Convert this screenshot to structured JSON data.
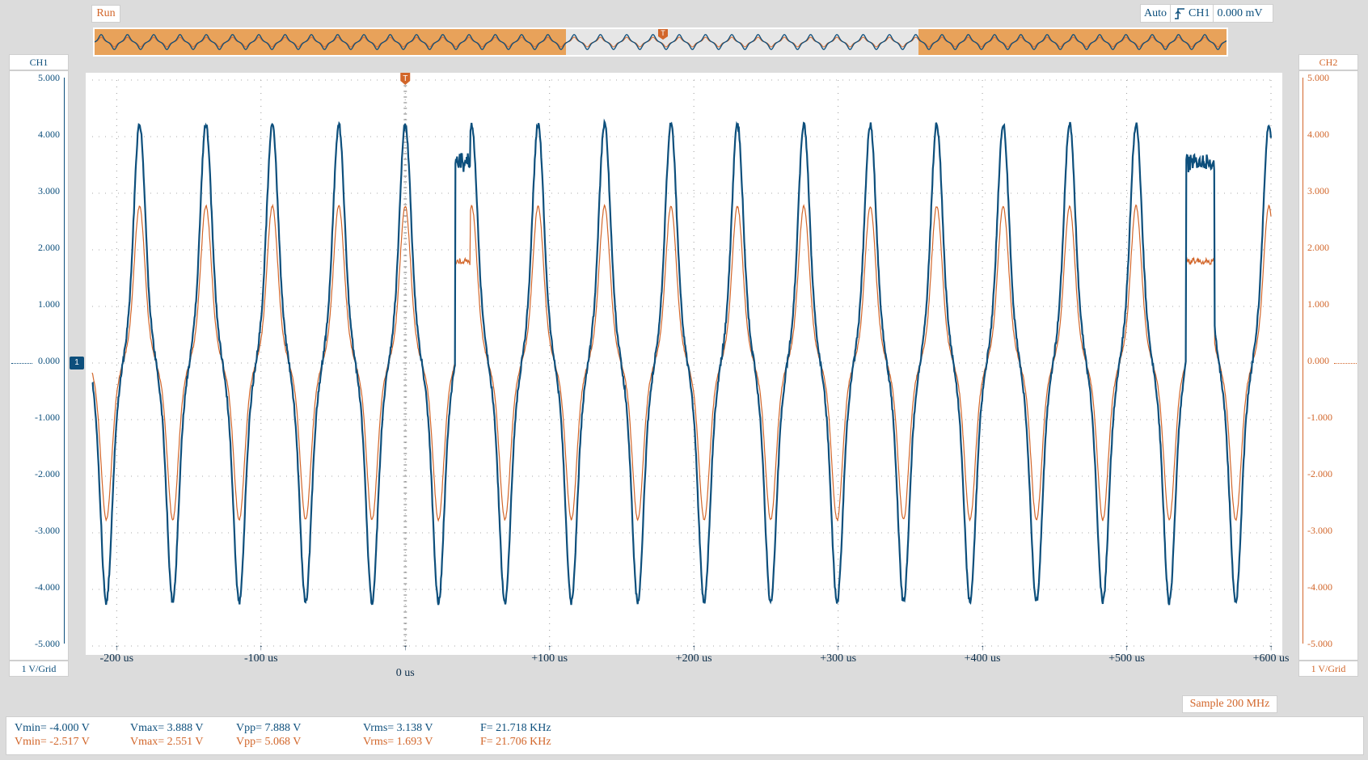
{
  "status": {
    "run_label": "Run"
  },
  "trigger": {
    "mode": "Auto",
    "source": "CH1",
    "level": "0.000 mV",
    "marker": "T"
  },
  "channels": {
    "ch1": {
      "name": "CH1",
      "volts_per_div": "1 V/Grid",
      "offset_marker": "1",
      "color": "#0d4f7c"
    },
    "ch2": {
      "name": "CH2",
      "volts_per_div": "1 V/Grid",
      "color": "#d2662a"
    }
  },
  "y_ticks": [
    "5.000",
    "4.000",
    "3.000",
    "2.000",
    "1.000",
    "0.000",
    "-1.000",
    "-2.000",
    "-3.000",
    "-4.000",
    "-5.000"
  ],
  "x_ticks": [
    "-200 us",
    "-100 us",
    "0 us",
    "+100 us",
    "+200 us",
    "+300 us",
    "+400 us",
    "+500 us",
    "+600 us"
  ],
  "sample": "Sample 200 MHz",
  "measurements": {
    "ch1": {
      "vmin": "Vmin= -4.000 V",
      "vmax": "Vmax= 3.888 V",
      "vpp": "Vpp= 7.888 V",
      "vrms": "Vrms= 3.138 V",
      "freq": "F= 21.718 KHz"
    },
    "ch2": {
      "vmin": "Vmin= -2.517 V",
      "vmax": "Vmax= 2.551 V",
      "vpp": "Vpp= 5.068 V",
      "vrms": "Vrms= 1.693 V",
      "freq": "F= 21.706 KHz"
    }
  },
  "chart_data": {
    "type": "line",
    "x_unit": "us",
    "x_range": [
      -217,
      600
    ],
    "ylim": [
      -5,
      5
    ],
    "grid": true,
    "series": [
      {
        "name": "CH1",
        "color": "#0d4f7c",
        "vmin": -4.0,
        "vmax": 3.888,
        "freq_khz": 21.718,
        "amplitude": 3.25
      },
      {
        "name": "CH2",
        "color": "#d2662a",
        "vmin": -2.517,
        "vmax": 2.551,
        "freq_khz": 21.706,
        "amplitude": 2.05
      }
    ]
  }
}
